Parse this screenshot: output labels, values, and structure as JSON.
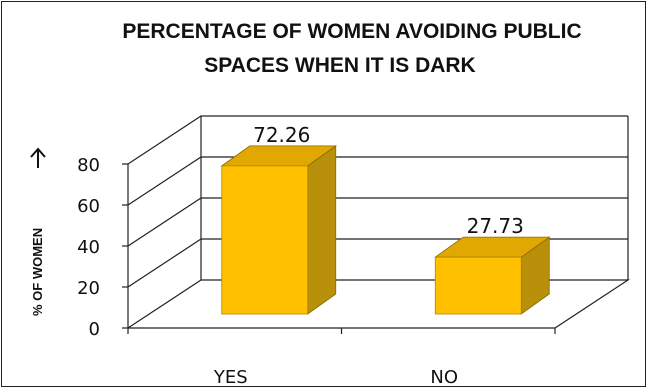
{
  "chart_data": {
    "type": "bar",
    "title_lines": [
      "PERCENTAGE OF WOMEN AVOIDING PUBLIC",
      "SPACES WHEN IT IS DARK"
    ],
    "ylabel": "% OF WOMEN",
    "categories": [
      "YES",
      "NO"
    ],
    "values": [
      72.26,
      27.73
    ],
    "data_labels": [
      "72.26",
      "27.73"
    ],
    "ylim": [
      0,
      80
    ],
    "yticks": [
      "0",
      "20",
      "40",
      "60",
      "80"
    ],
    "grid": true,
    "style": "3d",
    "bar_color": "#ffc000",
    "bar_side_color": "#b8900a",
    "bar_top_color": "#e0a800",
    "grid_color": "#222222"
  }
}
